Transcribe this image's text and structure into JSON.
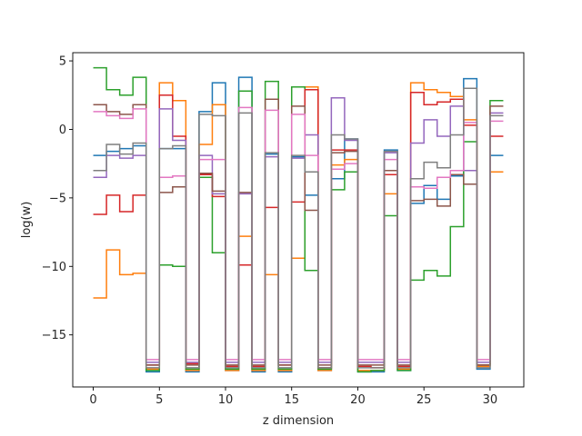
{
  "chart_data": {
    "type": "line",
    "drawstyle": "steps-post",
    "title": "",
    "xlabel": "z dimension",
    "ylabel": "log(w)",
    "xlim": [
      -1.55,
      32.55
    ],
    "ylim": [
      -18.8,
      5.6
    ],
    "xticks": [
      0,
      5,
      10,
      15,
      20,
      25,
      30
    ],
    "yticks": [
      -15,
      -10,
      -5,
      0,
      5
    ],
    "ytick_labels": [
      "−15",
      "−10",
      "−5",
      "0",
      "5"
    ],
    "grid": false,
    "legend": "none",
    "x": [
      0,
      1,
      2,
      3,
      4,
      5,
      6,
      7,
      8,
      9,
      10,
      11,
      12,
      13,
      14,
      15,
      16,
      17,
      18,
      19,
      20,
      21,
      22,
      23,
      24,
      25,
      26,
      27,
      28,
      29,
      30,
      31
    ],
    "series": [
      {
        "color": "#1f77b4",
        "values": [
          -1.9,
          -1.6,
          -1.4,
          -1.2,
          -17.7,
          -1.4,
          -1.4,
          -17.7,
          1.3,
          3.4,
          -17.6,
          3.8,
          -17.7,
          -1.8,
          -17.7,
          -2.0,
          -4.8,
          -17.6,
          -3.6,
          -0.7,
          -17.7,
          -17.7,
          -1.5,
          -17.6,
          -5.4,
          -4.1,
          -5.1,
          -3.4,
          3.7,
          -17.5,
          -1.9,
          -1.9
        ]
      },
      {
        "color": "#ff7f0e",
        "values": [
          -12.3,
          -8.8,
          -10.6,
          -10.5,
          -17.5,
          3.4,
          2.1,
          -17.6,
          -1.1,
          1.8,
          -17.6,
          -7.8,
          -17.6,
          -10.6,
          -17.6,
          -9.4,
          3.1,
          -17.6,
          -2.6,
          -2.2,
          -17.6,
          -17.6,
          -4.7,
          -17.5,
          3.4,
          2.9,
          2.7,
          2.4,
          0.7,
          -17.3,
          -3.1,
          -3.1
        ]
      },
      {
        "color": "#2ca02c",
        "values": [
          4.5,
          2.9,
          2.5,
          3.8,
          -17.6,
          -9.9,
          -10.0,
          -17.5,
          -3.5,
          -9.0,
          -17.5,
          2.8,
          -17.5,
          3.5,
          -17.5,
          3.1,
          -10.3,
          -17.5,
          -4.4,
          -3.1,
          -17.7,
          -17.6,
          -6.3,
          -17.6,
          -11.0,
          -10.3,
          -10.7,
          -7.1,
          -0.9,
          -17.2,
          2.1,
          2.1
        ]
      },
      {
        "color": "#d62728",
        "values": [
          -6.2,
          -4.8,
          -6.0,
          -4.8,
          -17.2,
          2.5,
          -0.5,
          -17.1,
          -3.3,
          -4.9,
          -17.3,
          -9.9,
          -17.3,
          -5.7,
          -17.2,
          -5.3,
          2.9,
          -17.4,
          -1.5,
          -1.5,
          -17.3,
          -17.4,
          -3.3,
          -17.3,
          2.7,
          1.8,
          2.0,
          2.2,
          0.3,
          -17.2,
          -0.5,
          -0.5
        ]
      },
      {
        "color": "#9467bd",
        "values": [
          -3.5,
          -1.9,
          -2.1,
          -1.9,
          -17.0,
          1.5,
          -0.8,
          -17.0,
          -1.9,
          -4.7,
          -17.0,
          -4.7,
          -17.0,
          -2.0,
          -17.0,
          -2.1,
          -0.4,
          -17.0,
          2.3,
          -0.8,
          -17.0,
          -17.0,
          -1.7,
          -17.0,
          -1.0,
          0.7,
          -0.5,
          1.7,
          -3.0,
          -17.0,
          1.2,
          1.2
        ]
      },
      {
        "color": "#8c564b",
        "values": [
          1.8,
          1.3,
          1.1,
          1.8,
          -17.2,
          -4.6,
          -4.2,
          -17.2,
          -3.2,
          -4.5,
          -17.2,
          -4.6,
          -17.2,
          2.2,
          -17.2,
          1.7,
          -5.9,
          -17.2,
          -1.7,
          -1.6,
          -17.2,
          -17.2,
          -3.0,
          -17.2,
          -5.2,
          -5.1,
          -5.6,
          -3.3,
          -4.0,
          -17.2,
          1.7,
          1.7
        ]
      },
      {
        "color": "#e377c2",
        "values": [
          1.3,
          1.0,
          0.8,
          1.5,
          -16.8,
          -3.5,
          -3.4,
          -16.8,
          -2.2,
          -2.2,
          -16.8,
          1.6,
          -16.8,
          1.4,
          -16.8,
          1.1,
          -1.9,
          -16.8,
          -2.9,
          -2.5,
          -16.8,
          -16.8,
          -2.2,
          -16.8,
          -4.2,
          -4.3,
          -3.5,
          -3.0,
          0.5,
          -16.8,
          0.6,
          0.6
        ]
      },
      {
        "color": "#7f7f7f",
        "values": [
          -3.0,
          -1.1,
          -1.8,
          -1.0,
          -17.4,
          -1.4,
          -1.2,
          -17.4,
          1.1,
          1.0,
          -17.4,
          1.2,
          -17.4,
          -1.7,
          -17.4,
          -1.9,
          -3.1,
          -17.4,
          -0.4,
          -0.7,
          -17.4,
          -17.4,
          -1.6,
          -17.4,
          -3.6,
          -2.4,
          -2.8,
          -0.4,
          3.0,
          -17.4,
          1.0,
          1.0
        ]
      }
    ]
  }
}
